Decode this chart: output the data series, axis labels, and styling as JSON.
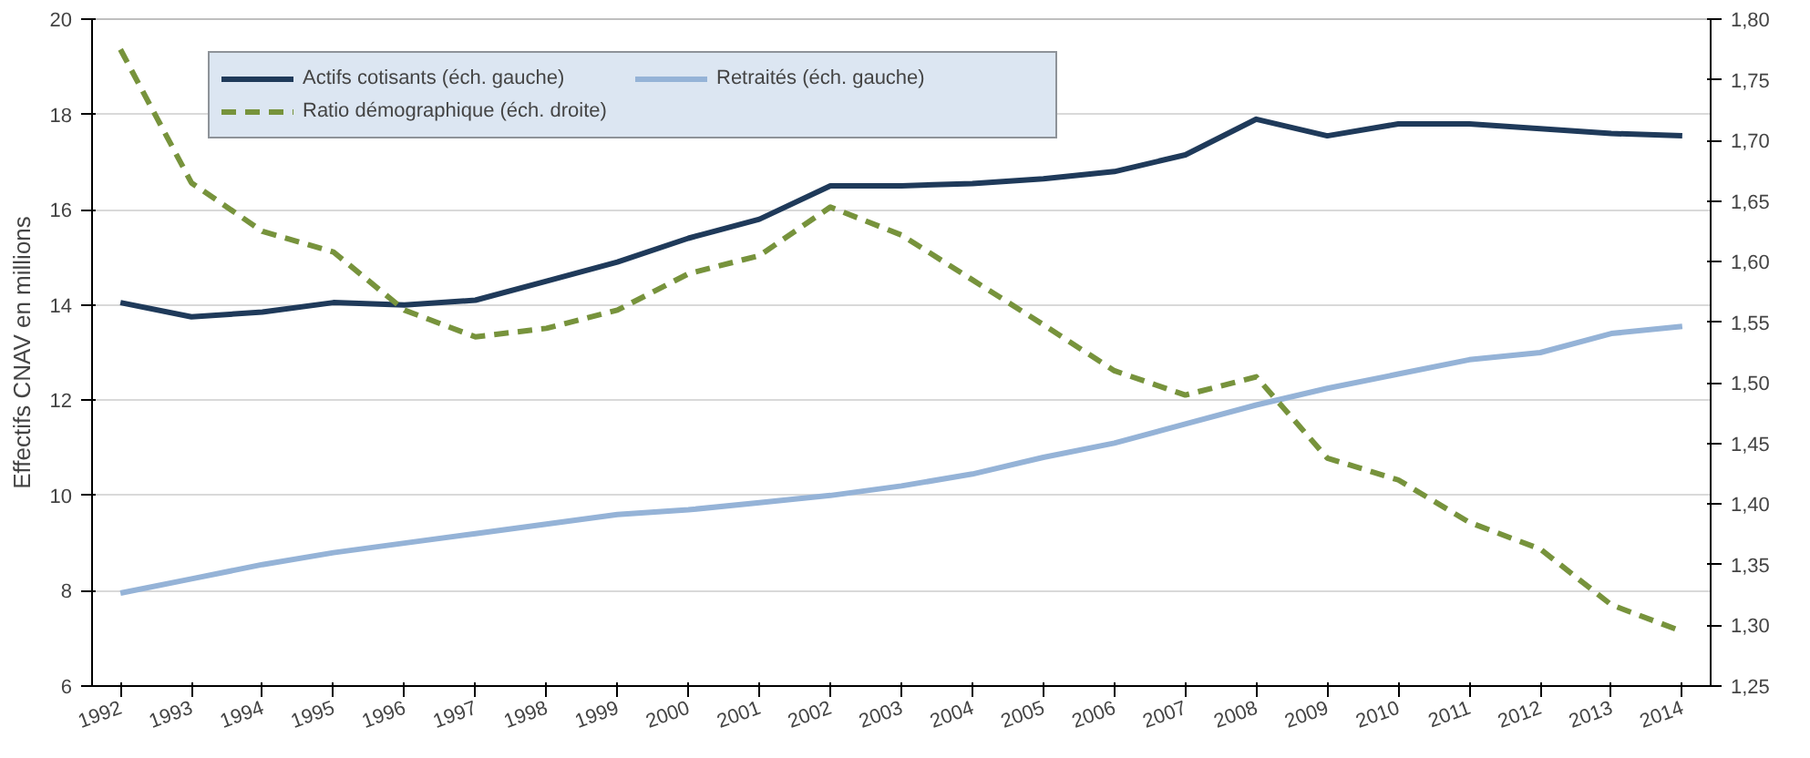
{
  "chart_data": {
    "type": "line",
    "ylabel": "Effectifs CNAV en millions",
    "categories": [
      "1992",
      "1993",
      "1994",
      "1995",
      "1996",
      "1997",
      "1998",
      "1999",
      "2000",
      "2001",
      "2002",
      "2003",
      "2004",
      "2005",
      "2006",
      "2007",
      "2008",
      "2009",
      "2010",
      "2011",
      "2012",
      "2013",
      "2014"
    ],
    "series": [
      {
        "name": "Actifs cotisants (éch. gauche)",
        "color": "#1f3a5a",
        "line_style": "solid",
        "values": [
          14.05,
          13.75,
          13.85,
          14.05,
          14.0,
          14.1,
          14.5,
          14.9,
          15.4,
          15.8,
          16.5,
          16.5,
          16.55,
          16.65,
          16.8,
          17.15,
          17.9,
          17.55,
          17.8,
          17.8,
          17.7,
          17.6,
          17.55
        ]
      },
      {
        "name": "Retraités (éch. gauche)",
        "color": "#95b3d7",
        "line_style": "solid",
        "values": [
          7.95,
          8.25,
          8.55,
          8.8,
          9.0,
          9.2,
          9.4,
          9.6,
          9.7,
          9.85,
          10.0,
          10.2,
          10.45,
          10.8,
          11.1,
          11.5,
          11.9,
          12.25,
          12.55,
          12.85,
          13.0,
          13.4,
          13.55
        ]
      },
      {
        "name": "Ratio démographique (éch. droite)",
        "color": "#77933c",
        "line_style": "dashed",
        "axis": "y2",
        "values": [
          1.775,
          1.665,
          1.625,
          1.608,
          1.56,
          1.538,
          1.545,
          1.56,
          1.59,
          1.605,
          1.645,
          1.622,
          1.585,
          1.548,
          1.51,
          1.49,
          1.505,
          1.438,
          1.42,
          1.385,
          1.363,
          1.317,
          1.295
        ]
      }
    ],
    "ylim": [
      6,
      20
    ],
    "yticks": [
      6,
      8,
      10,
      12,
      14,
      16,
      18,
      20
    ],
    "y2lim": [
      1.25,
      1.8
    ],
    "y2ticks": [
      {
        "value": 1.25,
        "label": "1,25"
      },
      {
        "value": 1.3,
        "label": "1,30"
      },
      {
        "value": 1.35,
        "label": "1,35"
      },
      {
        "value": 1.4,
        "label": "1,40"
      },
      {
        "value": 1.45,
        "label": "1,45"
      },
      {
        "value": 1.5,
        "label": "1,50"
      },
      {
        "value": 1.55,
        "label": "1,55"
      },
      {
        "value": 1.6,
        "label": "1,60"
      },
      {
        "value": 1.65,
        "label": "1,65"
      },
      {
        "value": 1.7,
        "label": "1,70"
      },
      {
        "value": 1.75,
        "label": "1,75"
      },
      {
        "value": 1.8,
        "label": "1,80"
      }
    ],
    "grid": "y",
    "legend": "top",
    "marker": "none"
  }
}
